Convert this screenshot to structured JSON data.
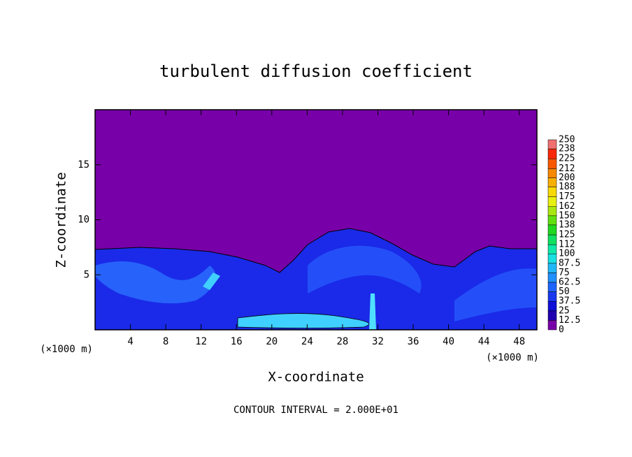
{
  "chart_data": {
    "type": "contour",
    "title": "turbulent diffusion coefficient",
    "xlabel": "X-coordinate",
    "ylabel": "Z-coordinate",
    "x_unit": "(×1000 m)",
    "footnote": "CONTOUR INTERVAL = 2.000E+01",
    "xlim": [
      0,
      50
    ],
    "xticks": [
      4,
      8,
      12,
      16,
      20,
      24,
      28,
      32,
      36,
      40,
      44,
      48
    ],
    "ylim": [
      0,
      20
    ],
    "yticks": [
      5,
      10,
      15
    ],
    "colorbar": {
      "levels": [
        0,
        12.5,
        25,
        37.5,
        50,
        62.5,
        75,
        87.5,
        100,
        112,
        125,
        138,
        150,
        162,
        175,
        188,
        200,
        212,
        225,
        238,
        250
      ],
      "colors": [
        "#7800a8",
        "#2000b0",
        "#1010d8",
        "#1838f0",
        "#1e64ff",
        "#2090ff",
        "#20b8f8",
        "#18e0e0",
        "#10e8a8",
        "#10e060",
        "#20d820",
        "#60e010",
        "#a8e810",
        "#e8f010",
        "#f8d808",
        "#f8b000",
        "#f88800",
        "#f85800",
        "#f82808",
        "#f07070"
      ]
    }
  }
}
